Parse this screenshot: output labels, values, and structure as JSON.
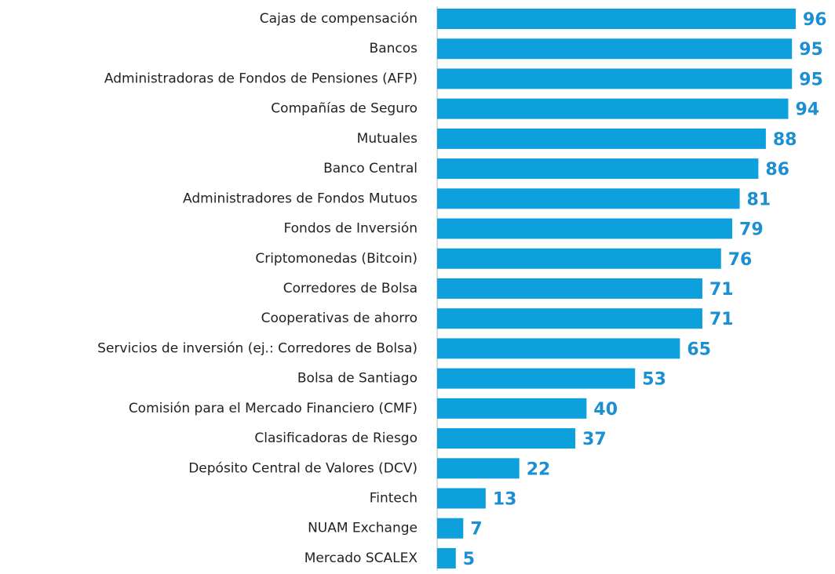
{
  "chart_data": {
    "type": "barh",
    "categories": [
      "Cajas de compensación",
      "Bancos",
      "Administradoras de Fondos de Pensiones (AFP)",
      "Compañías de Seguro",
      "Mutuales",
      "Banco Central",
      "Administradores de Fondos Mutuos",
      "Fondos de Inversión",
      "Criptomonedas (Bitcoin)",
      "Corredores de Bolsa",
      "Cooperativas de ahorro",
      "Servicios de inversión (ej.: Corredores de Bolsa)",
      "Bolsa de Santiago",
      "Comisión para el Mercado Financiero (CMF)",
      "Clasificadoras de Riesgo",
      "Depósito Central de Valores (DCV)",
      "Fintech",
      "NUAM Exchange",
      "Mercado SCALEX"
    ],
    "values": [
      96,
      95,
      95,
      94,
      88,
      86,
      81,
      79,
      76,
      71,
      71,
      65,
      53,
      40,
      37,
      22,
      13,
      7,
      5
    ],
    "color": "#0ea0dd",
    "xlim": [
      0,
      100
    ]
  }
}
